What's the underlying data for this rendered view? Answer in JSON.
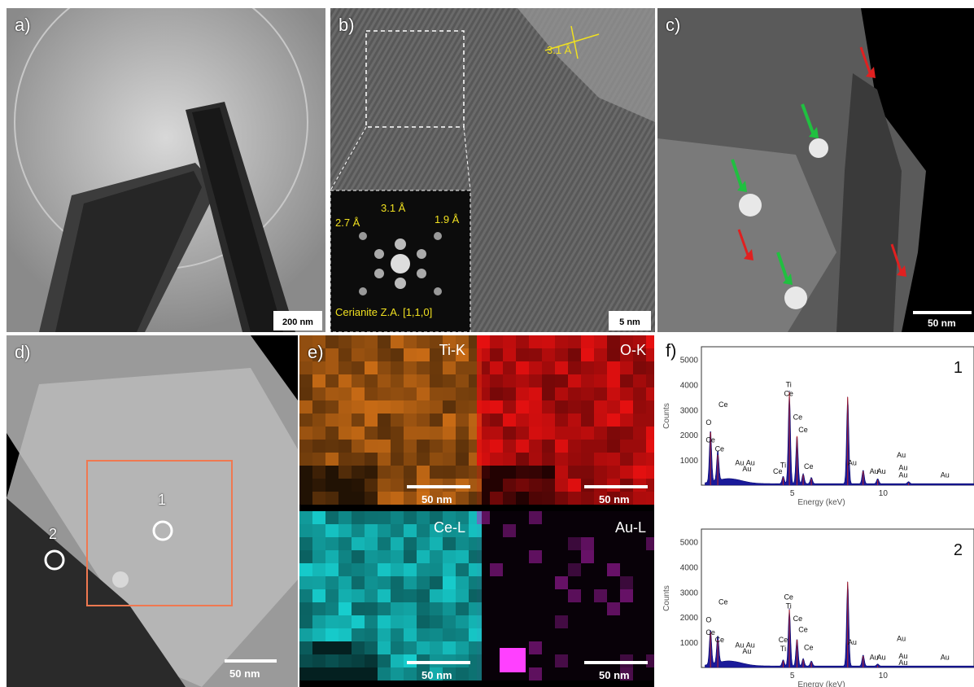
{
  "panels": {
    "a": {
      "label": "a)",
      "scale": "200 nm"
    },
    "b": {
      "label": "b)",
      "scale": "5 nm",
      "d_spacing": "3.1 Å",
      "inset": {
        "d1": "3.1 Å",
        "d2": "2.7 Å",
        "d3": "1.9 Å",
        "caption": "Cerianite Z.A. [1,1,0]"
      }
    },
    "c": {
      "label": "c)",
      "scale": "50 nm"
    },
    "d": {
      "label": "d)",
      "scale": "50 nm",
      "point1": "1",
      "point2": "2"
    },
    "e": {
      "label": "e)",
      "maps": [
        {
          "name": "Ti-K",
          "scale": "50 nm",
          "color": "#e07818"
        },
        {
          "name": "O-K",
          "scale": "50 nm",
          "color": "#e81010"
        },
        {
          "name": "Ce-L",
          "scale": "50 nm",
          "color": "#18d8d8"
        },
        {
          "name": "Au-L",
          "scale": "50 nm",
          "color": "#c020c0"
        }
      ]
    },
    "f": {
      "label": "f)"
    }
  },
  "chart_data": [
    {
      "type": "area",
      "title": "1",
      "xlabel": "Energy (keV)",
      "ylabel": "Counts",
      "ylim": [
        0,
        5500
      ],
      "xlim": [
        0,
        15
      ],
      "yticks": [
        "1000",
        "2000",
        "3000",
        "4000",
        "5000"
      ],
      "xticks": [
        "5",
        "10"
      ],
      "peaks": [
        {
          "x": 0.5,
          "y": 2100
        },
        {
          "x": 0.9,
          "y": 1200
        },
        {
          "x": 4.5,
          "y": 300
        },
        {
          "x": 4.84,
          "y": 3700
        },
        {
          "x": 5.26,
          "y": 1950
        },
        {
          "x": 5.6,
          "y": 400
        },
        {
          "x": 6.05,
          "y": 250
        },
        {
          "x": 8.05,
          "y": 3500
        },
        {
          "x": 8.9,
          "y": 550
        },
        {
          "x": 9.7,
          "y": 200
        },
        {
          "x": 11.4,
          "y": 80
        }
      ],
      "annotations": [
        "O",
        "Ce",
        "Ce",
        "Ce",
        "Au",
        "Au",
        "Au",
        "Ti",
        "Ce",
        "Ti",
        "Ce",
        "Ce",
        "Ce",
        "Ce",
        "Au",
        "Au",
        "Au",
        "Au",
        "Au",
        "Au",
        "Au"
      ]
    },
    {
      "type": "area",
      "title": "2",
      "xlabel": "Energy (keV)",
      "ylabel": "Counts",
      "ylim": [
        0,
        5500
      ],
      "xlim": [
        0,
        15
      ],
      "yticks": [
        "1000",
        "2000",
        "3000",
        "4000",
        "5000"
      ],
      "xticks": [
        "5",
        "10"
      ],
      "peaks": [
        {
          "x": 0.5,
          "y": 1400
        },
        {
          "x": 0.9,
          "y": 1100
        },
        {
          "x": 4.5,
          "y": 250
        },
        {
          "x": 4.84,
          "y": 2300
        },
        {
          "x": 5.26,
          "y": 1100
        },
        {
          "x": 5.6,
          "y": 300
        },
        {
          "x": 6.05,
          "y": 200
        },
        {
          "x": 8.05,
          "y": 3400
        },
        {
          "x": 8.9,
          "y": 450
        },
        {
          "x": 9.7,
          "y": 80
        }
      ],
      "annotations": [
        "O",
        "Ce",
        "Ce",
        "Ce",
        "Au",
        "Au",
        "Au",
        "Ce",
        "Ti",
        "Ce",
        "Ti",
        "Ce",
        "Ce",
        "Ce",
        "Au",
        "Au",
        "Au",
        "Au",
        "Au",
        "Au",
        "Au"
      ]
    }
  ]
}
